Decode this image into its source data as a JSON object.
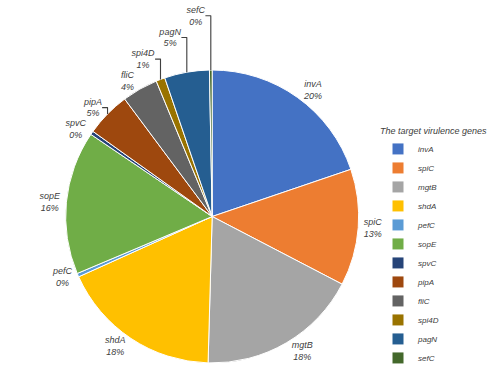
{
  "chart_data": {
    "type": "pie",
    "legend_title": "The target virulence genes",
    "categories": [
      "invA",
      "spiC",
      "mgtB",
      "shdA",
      "pefC",
      "sopE",
      "spvC",
      "pipA",
      "fliC",
      "spi4D",
      "pagN",
      "sefC"
    ],
    "values": [
      20,
      13,
      18,
      18,
      0.4,
      16,
      0.4,
      5,
      4,
      1,
      5,
      0.3
    ],
    "value_labels": [
      "20%",
      "13%",
      "18%",
      "18%",
      "0%",
      "16%",
      "0%",
      "5%",
      "4%",
      "1%",
      "5%",
      "0%"
    ],
    "colors": [
      "#4472C4",
      "#ED7D31",
      "#A5A5A5",
      "#FFC000",
      "#5B9BD5",
      "#70AD47",
      "#264478",
      "#9E480E",
      "#636363",
      "#997300",
      "#255E91",
      "#43682B"
    ],
    "data_labels": true,
    "legend": "right"
  }
}
